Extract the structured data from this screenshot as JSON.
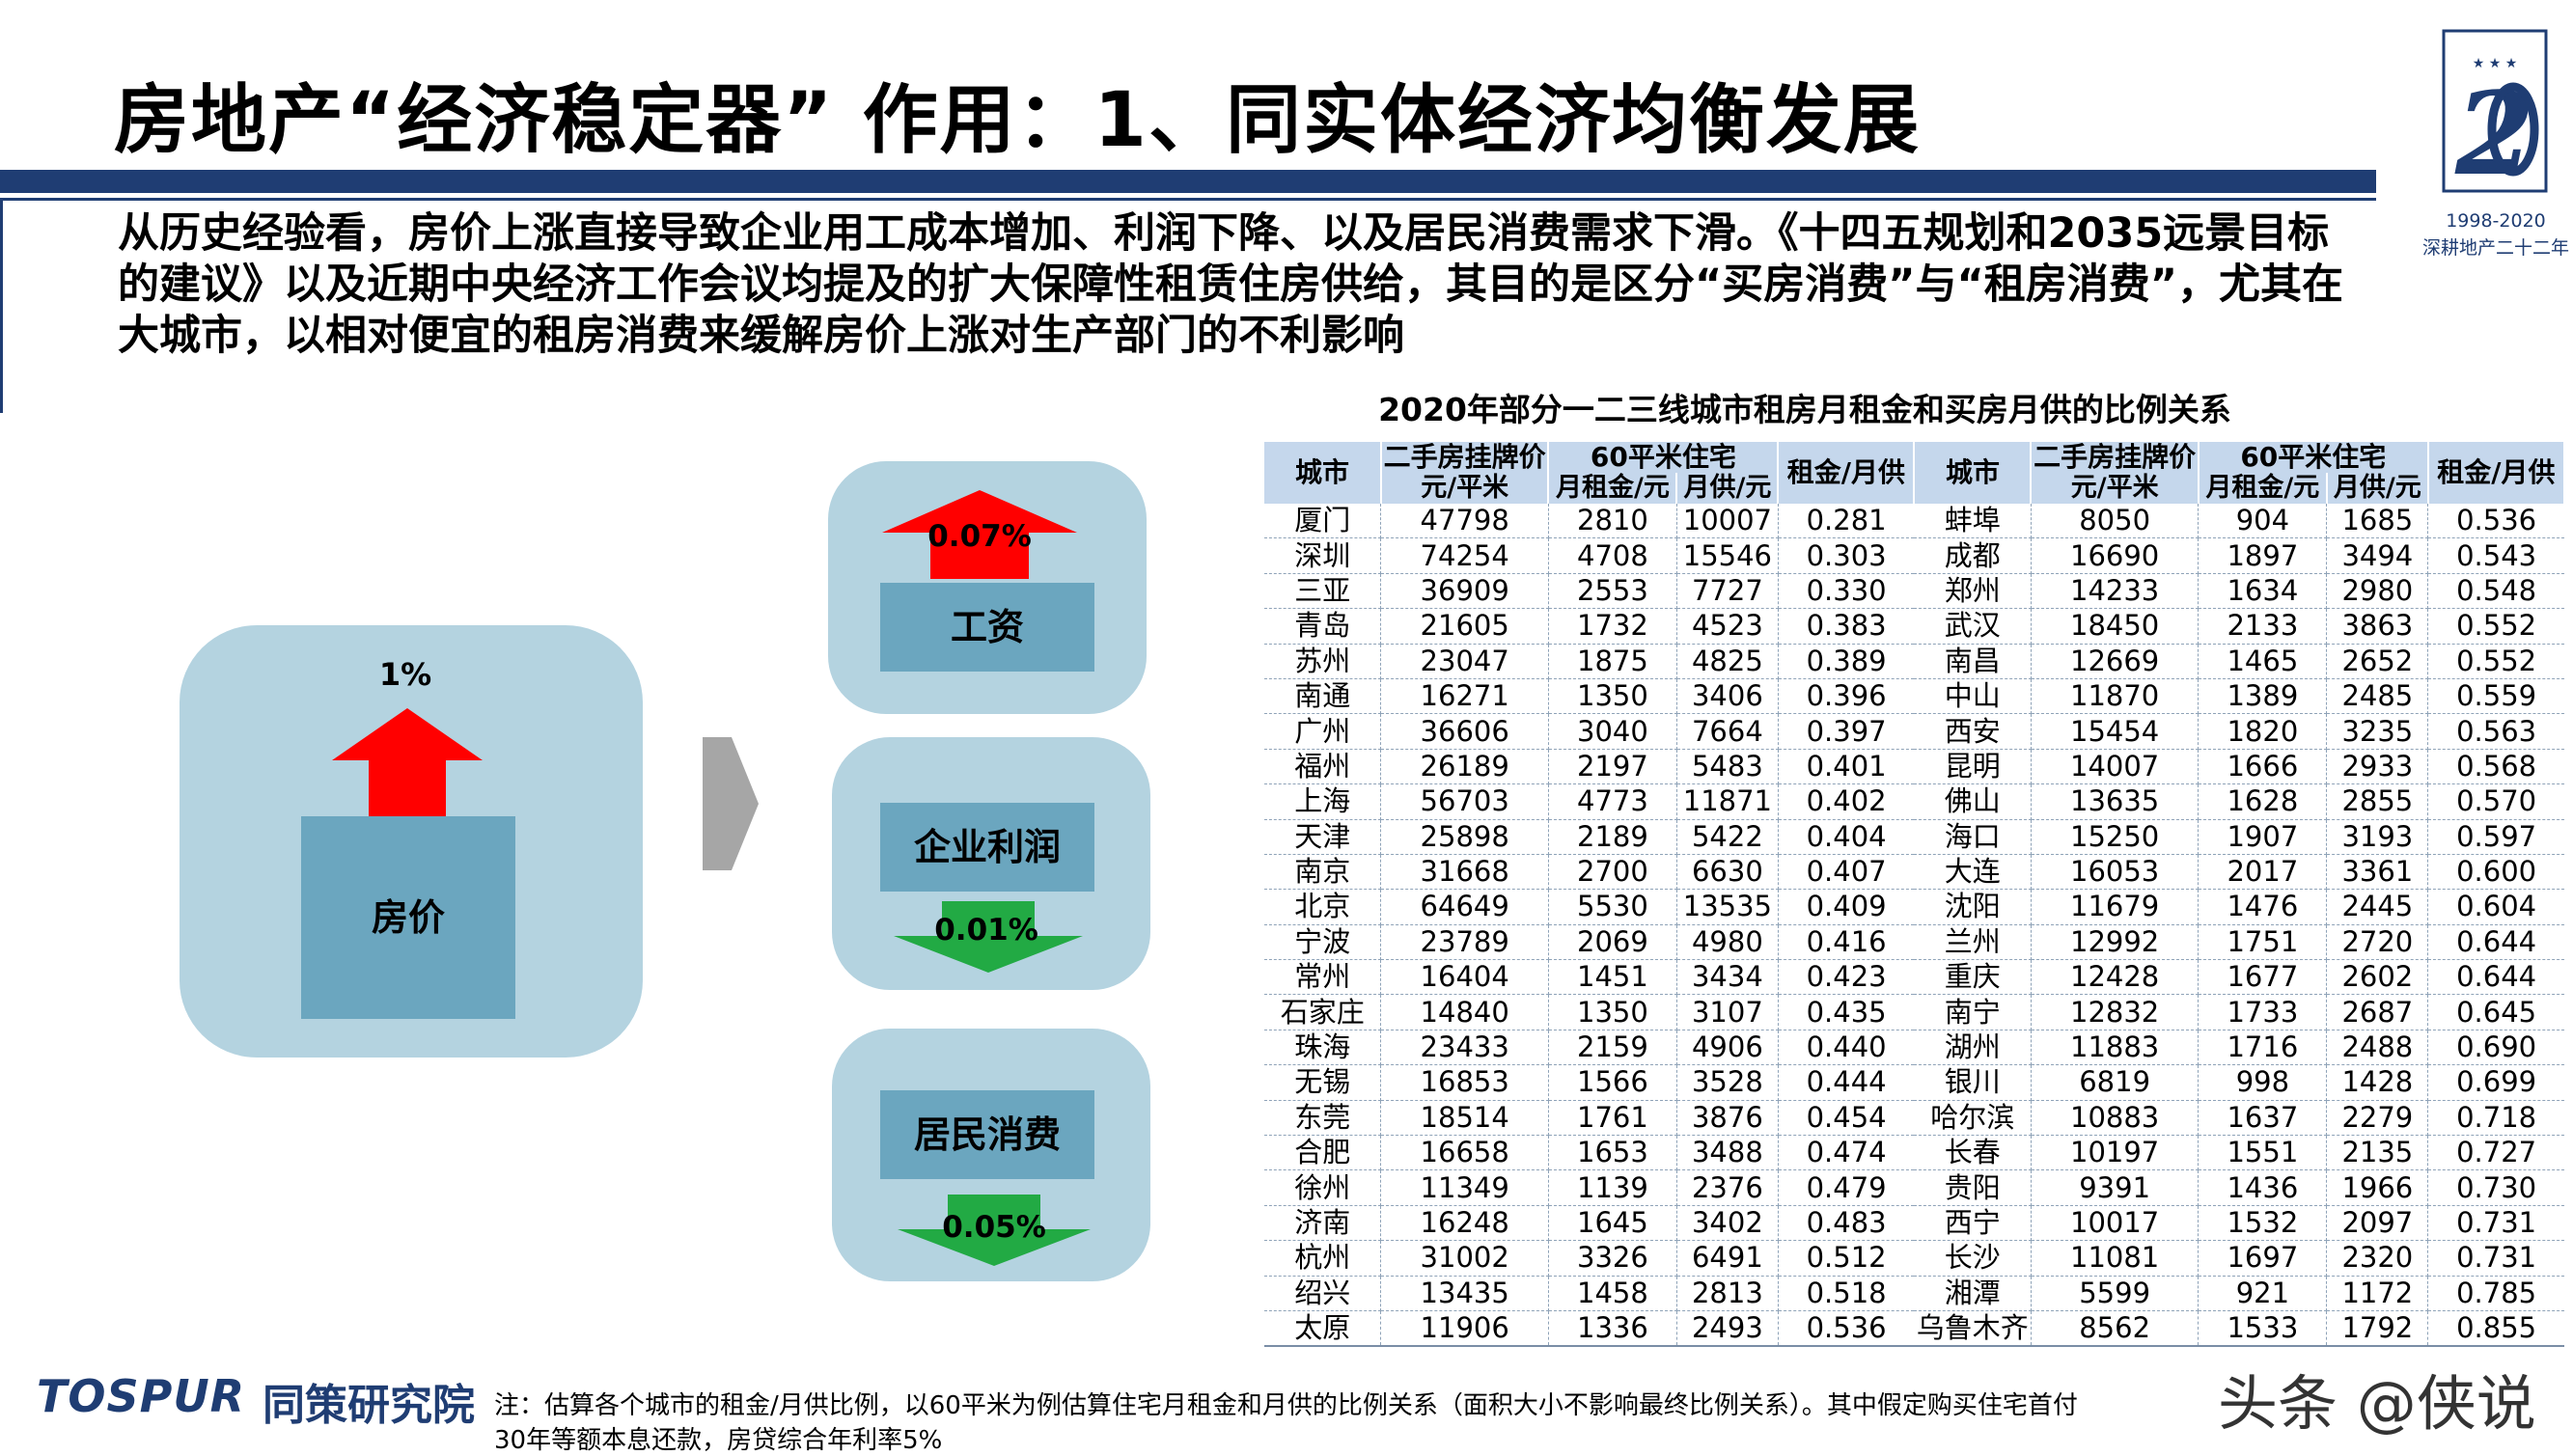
{
  "title": "房地产“经济稳定器” 作用：1、同实体经济均衡发展",
  "logo": {
    "years": "1998-2020",
    "name": "深耕地产二十二年"
  },
  "intro": "从历史经验看，房价上涨直接导致企业用工成本增加、利润下降、以及居民消费需求下滑。《十四五规划和2035远景目标的建议》以及近期中央经济工作会议均提及的扩大保障性租赁住房供给，其目的是区分“买房消费”与“租房消费”，尤其在大城市，以相对便宜的租房消费来缓解房价上涨对生产部门的不利影响",
  "diagram": {
    "price_label": "房价",
    "price_pct": "1%",
    "wages_label": "工资",
    "wages_pct": "0.07%",
    "profit_label": "企业利润",
    "profit_pct": "0.01%",
    "consume_label": "居民消费",
    "consume_pct": "0.05%",
    "colors": {
      "panel": "#b4d3e0",
      "box": "#6ba6bf",
      "up_arrow": "#ff0000",
      "down_arrow": "#22aa44",
      "chevron": "#a6a6a6"
    }
  },
  "table": {
    "title": "2020年部分一二三线城市租房月租金和买房月供的比例关系",
    "headers": {
      "city": "城市",
      "price": "二手房挂牌价",
      "price_unit": "元/平米",
      "home60": "60平米住宅",
      "rent": "月租金/元",
      "mortgage": "月供/元",
      "ratio": "租金/月供"
    },
    "rows": [
      [
        "厦门",
        "47798",
        "2810",
        "10007",
        "0.281",
        "蚌埠",
        "8050",
        "904",
        "1685",
        "0.536"
      ],
      [
        "深圳",
        "74254",
        "4708",
        "15546",
        "0.303",
        "成都",
        "16690",
        "1897",
        "3494",
        "0.543"
      ],
      [
        "三亚",
        "36909",
        "2553",
        "7727",
        "0.330",
        "郑州",
        "14233",
        "1634",
        "2980",
        "0.548"
      ],
      [
        "青岛",
        "21605",
        "1732",
        "4523",
        "0.383",
        "武汉",
        "18450",
        "2133",
        "3863",
        "0.552"
      ],
      [
        "苏州",
        "23047",
        "1875",
        "4825",
        "0.389",
        "南昌",
        "12669",
        "1465",
        "2652",
        "0.552"
      ],
      [
        "南通",
        "16271",
        "1350",
        "3406",
        "0.396",
        "中山",
        "11870",
        "1389",
        "2485",
        "0.559"
      ],
      [
        "广州",
        "36606",
        "3040",
        "7664",
        "0.397",
        "西安",
        "15454",
        "1820",
        "3235",
        "0.563"
      ],
      [
        "福州",
        "26189",
        "2197",
        "5483",
        "0.401",
        "昆明",
        "14007",
        "1666",
        "2933",
        "0.568"
      ],
      [
        "上海",
        "56703",
        "4773",
        "11871",
        "0.402",
        "佛山",
        "13635",
        "1628",
        "2855",
        "0.570"
      ],
      [
        "天津",
        "25898",
        "2189",
        "5422",
        "0.404",
        "海口",
        "15250",
        "1907",
        "3193",
        "0.597"
      ],
      [
        "南京",
        "31668",
        "2700",
        "6630",
        "0.407",
        "大连",
        "16053",
        "2017",
        "3361",
        "0.600"
      ],
      [
        "北京",
        "64649",
        "5530",
        "13535",
        "0.409",
        "沈阳",
        "11679",
        "1476",
        "2445",
        "0.604"
      ],
      [
        "宁波",
        "23789",
        "2069",
        "4980",
        "0.416",
        "兰州",
        "12992",
        "1751",
        "2720",
        "0.644"
      ],
      [
        "常州",
        "16404",
        "1451",
        "3434",
        "0.423",
        "重庆",
        "12428",
        "1677",
        "2602",
        "0.644"
      ],
      [
        "石家庄",
        "14840",
        "1350",
        "3107",
        "0.435",
        "南宁",
        "12832",
        "1733",
        "2687",
        "0.645"
      ],
      [
        "珠海",
        "23433",
        "2159",
        "4906",
        "0.440",
        "湖州",
        "11883",
        "1716",
        "2488",
        "0.690"
      ],
      [
        "无锡",
        "16853",
        "1566",
        "3528",
        "0.444",
        "银川",
        "6819",
        "998",
        "1428",
        "0.699"
      ],
      [
        "东莞",
        "18514",
        "1761",
        "3876",
        "0.454",
        "哈尔滨",
        "10883",
        "1637",
        "2279",
        "0.718"
      ],
      [
        "合肥",
        "16658",
        "1653",
        "3488",
        "0.474",
        "长春",
        "10197",
        "1551",
        "2135",
        "0.727"
      ],
      [
        "徐州",
        "11349",
        "1139",
        "2376",
        "0.479",
        "贵阳",
        "9391",
        "1436",
        "1966",
        "0.730"
      ],
      [
        "济南",
        "16248",
        "1645",
        "3402",
        "0.483",
        "西宁",
        "10017",
        "1532",
        "2097",
        "0.731"
      ],
      [
        "杭州",
        "31002",
        "3326",
        "6491",
        "0.512",
        "长沙",
        "11081",
        "1697",
        "2320",
        "0.731"
      ],
      [
        "绍兴",
        "13435",
        "1458",
        "2813",
        "0.518",
        "湘潭",
        "5599",
        "921",
        "1172",
        "0.785"
      ],
      [
        "太原",
        "11906",
        "1336",
        "2493",
        "0.536",
        "乌鲁木齐",
        "8562",
        "1533",
        "1792",
        "0.855"
      ]
    ]
  },
  "footer": {
    "brand_en": "TOSPUR",
    "brand_cn": "同策研究院",
    "note_line1": "注：估算各个城市的租金/月供比例，以60平米为例估算住宅月租金和月供的比例关系（面积大小不影响最终比例关系）。其中假定购买住宅首付",
    "note_line2": "30年等额本息还款，房贷综合年利率5%",
    "watermark": "头条 @侠说"
  },
  "colors": {
    "brand_blue": "#1f3d73",
    "table_header": "#c5d7ec"
  }
}
